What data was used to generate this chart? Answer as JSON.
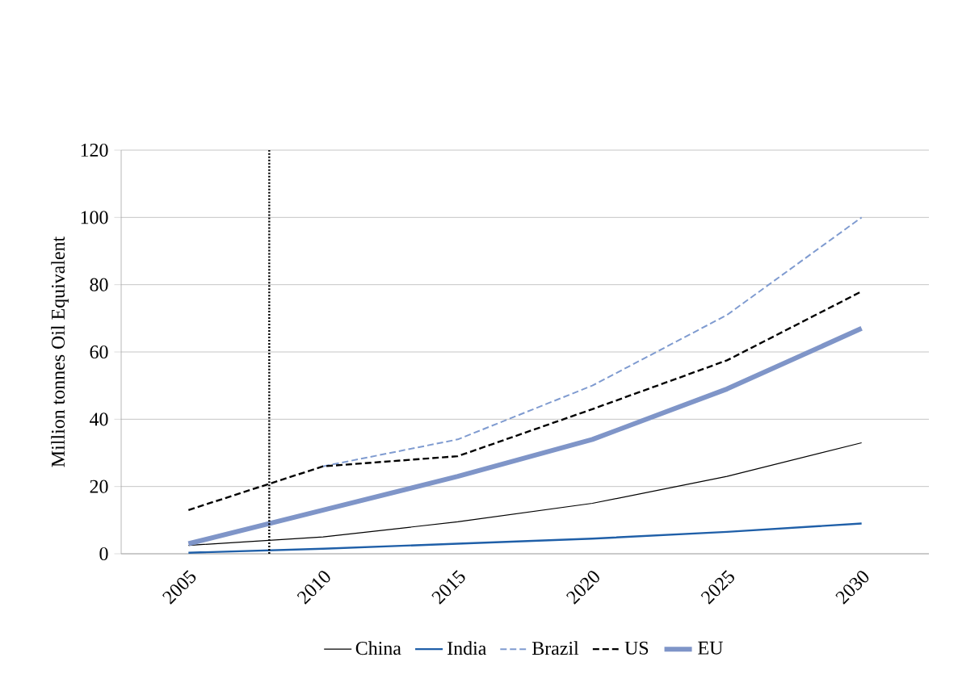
{
  "chart_data": {
    "type": "line",
    "ylabel": "Million tonnes Oil Equivalent",
    "x": [
      2005,
      2010,
      2015,
      2020,
      2025,
      2030
    ],
    "xlim": [
      2002.5,
      2032.5
    ],
    "xticks": [
      2005,
      2010,
      2015,
      2020,
      2025,
      2030
    ],
    "ylim": [
      0,
      120
    ],
    "yticks": [
      0,
      20,
      40,
      60,
      80,
      100,
      120
    ],
    "grid": "y",
    "legend": "bottom",
    "series": [
      {
        "name": "China",
        "color": "#000000",
        "line_style": "solid",
        "values": [
          2.5,
          5,
          9.5,
          15,
          23,
          33
        ]
      },
      {
        "name": "India",
        "color": "#1f5fa8",
        "line_style": "solid",
        "values": [
          0.3,
          1.5,
          3,
          4.5,
          6.5,
          9
        ]
      },
      {
        "name": "Brazil",
        "color": "#7f9bd0",
        "line_style": "dashed",
        "values": [
          null,
          26,
          34,
          50,
          71,
          100
        ]
      },
      {
        "name": "US",
        "color": "#000000",
        "line_style": "dashed",
        "values": [
          13,
          26,
          29,
          43,
          57.5,
          78
        ]
      },
      {
        "name": "EU",
        "color": "#7f95c8",
        "line_style": "solid",
        "values": [
          3,
          13,
          23,
          34,
          49,
          67
        ]
      }
    ],
    "ref_lines": [
      {
        "axis": "x",
        "value": 2008,
        "color": "#000000",
        "line_style": "dotted"
      }
    ]
  }
}
